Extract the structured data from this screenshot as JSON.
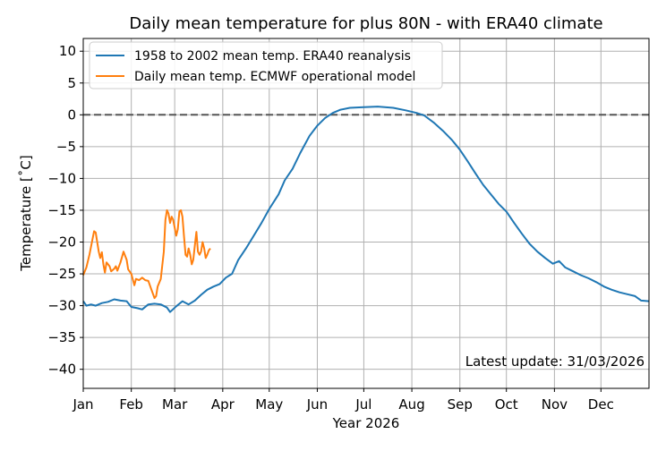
{
  "chart_data": {
    "type": "line",
    "title": "Daily mean temperature for plus 80N - with ERA40 climate",
    "xlabel": "Year 2026",
    "ylabel": "Temperature [˚C]",
    "xlim": [
      0,
      365
    ],
    "ylim": [
      -43,
      12
    ],
    "month_ticks": [
      {
        "label": "Jan",
        "day": 0
      },
      {
        "label": "Feb",
        "day": 31
      },
      {
        "label": "Mar",
        "day": 59
      },
      {
        "label": "Apr",
        "day": 90
      },
      {
        "label": "May",
        "day": 120
      },
      {
        "label": "Jun",
        "day": 151
      },
      {
        "label": "Jul",
        "day": 181
      },
      {
        "label": "Aug",
        "day": 212
      },
      {
        "label": "Sep",
        "day": 243
      },
      {
        "label": "Oct",
        "day": 273
      },
      {
        "label": "Nov",
        "day": 304
      },
      {
        "label": "Dec",
        "day": 334
      }
    ],
    "y_ticks": [
      10,
      5,
      0,
      -5,
      -10,
      -15,
      -20,
      -25,
      -30,
      -35,
      -40
    ],
    "grid": true,
    "reference_line": {
      "y": 0,
      "style": "dashed"
    },
    "legend_position": "top-left",
    "annotation": "Latest update: 31/03/2026",
    "series": [
      {
        "name": "1958 to 2002 mean temp. ERA40 reanalysis",
        "color": "#1f77b4",
        "points": [
          [
            0,
            -29.3
          ],
          [
            2,
            -30.0
          ],
          [
            5,
            -29.8
          ],
          [
            8,
            -30.0
          ],
          [
            12,
            -29.6
          ],
          [
            16,
            -29.4
          ],
          [
            20,
            -29.0
          ],
          [
            24,
            -29.2
          ],
          [
            28,
            -29.3
          ],
          [
            31,
            -30.2
          ],
          [
            35,
            -30.4
          ],
          [
            38,
            -30.6
          ],
          [
            42,
            -29.8
          ],
          [
            46,
            -29.7
          ],
          [
            50,
            -29.8
          ],
          [
            54,
            -30.3
          ],
          [
            56,
            -31.0
          ],
          [
            60,
            -30.1
          ],
          [
            64,
            -29.3
          ],
          [
            68,
            -29.8
          ],
          [
            72,
            -29.2
          ],
          [
            76,
            -28.3
          ],
          [
            80,
            -27.5
          ],
          [
            84,
            -27.0
          ],
          [
            88,
            -26.6
          ],
          [
            92,
            -25.6
          ],
          [
            96,
            -25.0
          ],
          [
            100,
            -22.8
          ],
          [
            105,
            -21.0
          ],
          [
            110,
            -19.0
          ],
          [
            115,
            -17.0
          ],
          [
            120,
            -14.8
          ],
          [
            126,
            -12.5
          ],
          [
            130,
            -10.3
          ],
          [
            135,
            -8.5
          ],
          [
            140,
            -6.0
          ],
          [
            146,
            -3.3
          ],
          [
            151,
            -1.7
          ],
          [
            156,
            -0.5
          ],
          [
            161,
            0.3
          ],
          [
            166,
            0.8
          ],
          [
            172,
            1.1
          ],
          [
            181,
            1.2
          ],
          [
            190,
            1.3
          ],
          [
            200,
            1.1
          ],
          [
            208,
            0.7
          ],
          [
            215,
            0.3
          ],
          [
            220,
            -0.1
          ],
          [
            226,
            -1.2
          ],
          [
            232,
            -2.5
          ],
          [
            238,
            -4.0
          ],
          [
            243,
            -5.5
          ],
          [
            248,
            -7.3
          ],
          [
            253,
            -9.2
          ],
          [
            258,
            -11.0
          ],
          [
            263,
            -12.5
          ],
          [
            268,
            -14.0
          ],
          [
            273,
            -15.2
          ],
          [
            278,
            -17.0
          ],
          [
            283,
            -18.7
          ],
          [
            288,
            -20.3
          ],
          [
            293,
            -21.5
          ],
          [
            298,
            -22.5
          ],
          [
            303,
            -23.4
          ],
          [
            307,
            -23.0
          ],
          [
            311,
            -24.0
          ],
          [
            316,
            -24.6
          ],
          [
            321,
            -25.2
          ],
          [
            326,
            -25.7
          ],
          [
            331,
            -26.3
          ],
          [
            336,
            -27.0
          ],
          [
            341,
            -27.5
          ],
          [
            346,
            -27.9
          ],
          [
            351,
            -28.2
          ],
          [
            356,
            -28.5
          ],
          [
            360,
            -29.2
          ],
          [
            365,
            -29.3
          ]
        ]
      },
      {
        "name": "Daily mean temp. ECMWF operational model",
        "color": "#ff7f0e",
        "points": [
          [
            0,
            -25.2
          ],
          [
            2,
            -24.0
          ],
          [
            4,
            -22.0
          ],
          [
            6,
            -19.5
          ],
          [
            7,
            -18.3
          ],
          [
            8,
            -18.5
          ],
          [
            10,
            -21.5
          ],
          [
            11,
            -22.5
          ],
          [
            12,
            -21.6
          ],
          [
            13,
            -23.5
          ],
          [
            14,
            -24.8
          ],
          [
            15,
            -23.2
          ],
          [
            17,
            -23.8
          ],
          [
            18,
            -24.6
          ],
          [
            20,
            -24.2
          ],
          [
            21,
            -23.8
          ],
          [
            22,
            -24.5
          ],
          [
            24,
            -23.2
          ],
          [
            26,
            -21.5
          ],
          [
            28,
            -22.8
          ],
          [
            29,
            -24.3
          ],
          [
            31,
            -25.0
          ],
          [
            33,
            -26.8
          ],
          [
            34,
            -25.8
          ],
          [
            36,
            -26.0
          ],
          [
            38,
            -25.6
          ],
          [
            40,
            -26.0
          ],
          [
            42,
            -26.1
          ],
          [
            44,
            -27.5
          ],
          [
            46,
            -28.8
          ],
          [
            47,
            -28.5
          ],
          [
            48,
            -27.0
          ],
          [
            50,
            -25.8
          ],
          [
            52,
            -21.5
          ],
          [
            53,
            -16.5
          ],
          [
            54,
            -15.0
          ],
          [
            55,
            -15.5
          ],
          [
            56,
            -17.0
          ],
          [
            57,
            -16.0
          ],
          [
            58,
            -16.5
          ],
          [
            60,
            -19.0
          ],
          [
            61,
            -18.0
          ],
          [
            62,
            -15.2
          ],
          [
            63,
            -15.0
          ],
          [
            64,
            -16.0
          ],
          [
            65,
            -19.0
          ],
          [
            66,
            -22.0
          ],
          [
            67,
            -22.3
          ],
          [
            68,
            -21.0
          ],
          [
            69,
            -22.0
          ],
          [
            70,
            -23.5
          ],
          [
            71,
            -22.8
          ],
          [
            72,
            -20.5
          ],
          [
            73,
            -18.4
          ],
          [
            74,
            -21.5
          ],
          [
            75,
            -22.0
          ],
          [
            76,
            -21.5
          ],
          [
            77,
            -20.0
          ],
          [
            78,
            -21.0
          ],
          [
            79,
            -22.5
          ],
          [
            80,
            -22.0
          ],
          [
            81,
            -21.3
          ],
          [
            82,
            -21.0
          ]
        ]
      }
    ]
  }
}
